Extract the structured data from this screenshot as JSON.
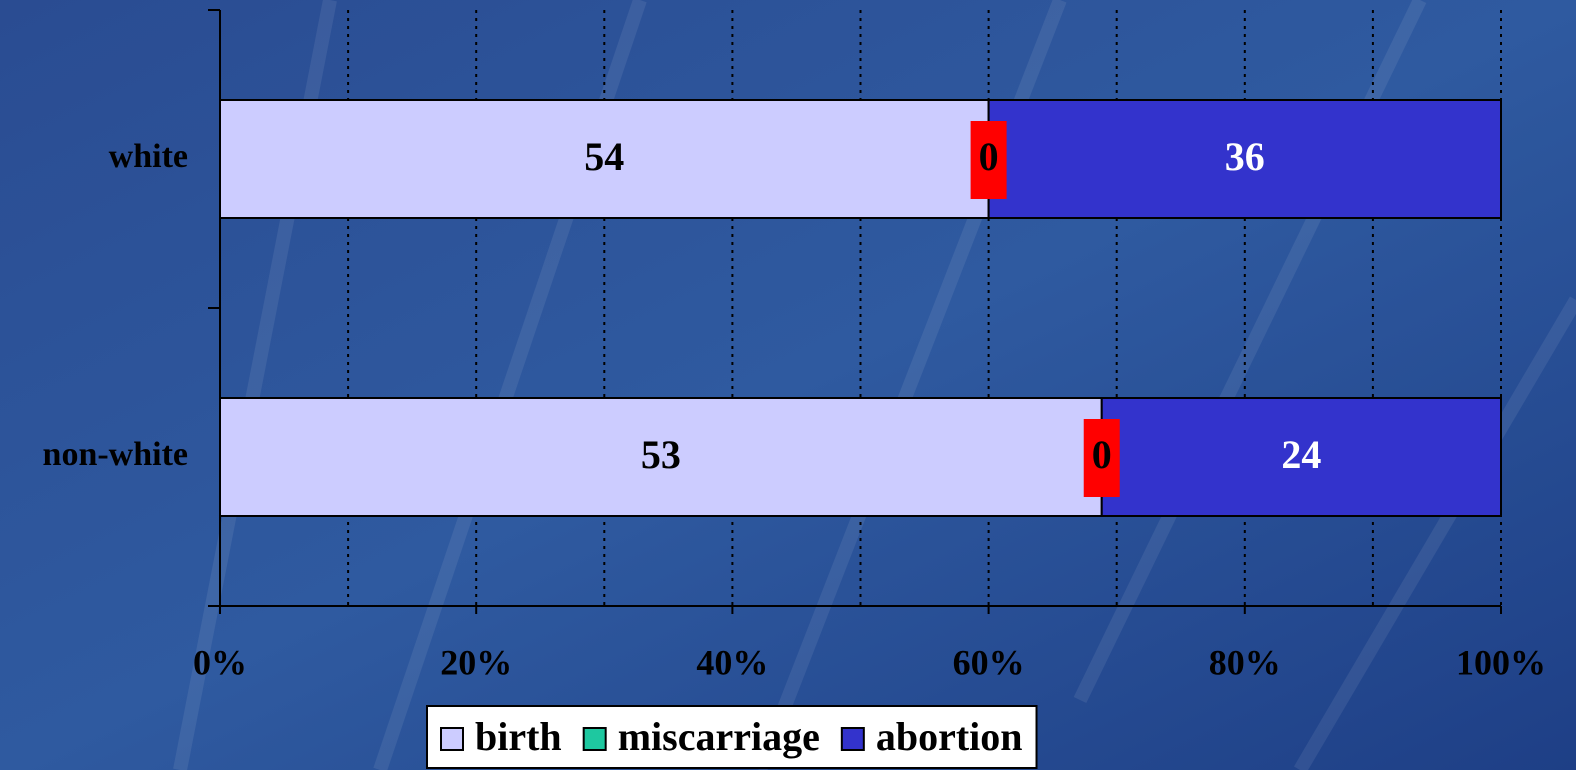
{
  "chart_data": {
    "type": "stacked_percent_barh",
    "categories": [
      "white",
      "non-white"
    ],
    "series": [
      {
        "name": "birth",
        "color": "#ccccff",
        "label_color": "#000000",
        "values": [
          54,
          53
        ]
      },
      {
        "name": "miscarriage",
        "color": "#1ec8a0",
        "label_color": "#000000",
        "label_background": "#ff0000",
        "values": [
          0,
          0
        ]
      },
      {
        "name": "abortion",
        "color": "#3333cc",
        "label_color": "#ffffff",
        "values": [
          36,
          24
        ]
      }
    ],
    "xlim": [
      0,
      100
    ],
    "xticks": [
      {
        "value": 0,
        "label": "0%"
      },
      {
        "value": 20,
        "label": "20%"
      },
      {
        "value": 40,
        "label": "40%"
      },
      {
        "value": 60,
        "label": "60%"
      },
      {
        "value": 80,
        "label": "80%"
      },
      {
        "value": 100,
        "label": "100%"
      }
    ],
    "minor_xticks": [
      10,
      30,
      50,
      70,
      90
    ],
    "grid": true,
    "legend": "bottom"
  }
}
